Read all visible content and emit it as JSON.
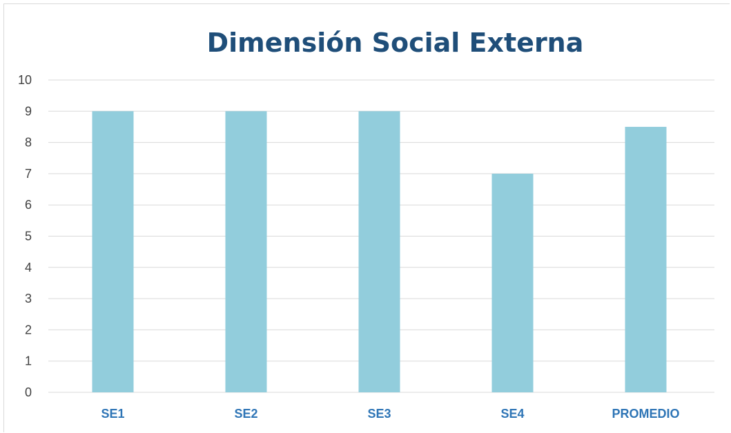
{
  "chart_data": {
    "type": "bar",
    "title": "Dimensión Social Externa",
    "categories": [
      "SE1",
      "SE2",
      "SE3",
      "SE4",
      "PROMEDIO"
    ],
    "values": [
      9,
      9,
      9,
      7,
      8.5
    ],
    "ylim": [
      0,
      10
    ],
    "yticks": [
      0,
      1,
      2,
      3,
      4,
      5,
      6,
      7,
      8,
      9,
      10
    ],
    "grid": true,
    "legend": "none",
    "colors": {
      "bar": "#92cddc",
      "title": "#1f4e79",
      "category_label": "#2e75b6",
      "grid": "#d9d9d9"
    }
  }
}
